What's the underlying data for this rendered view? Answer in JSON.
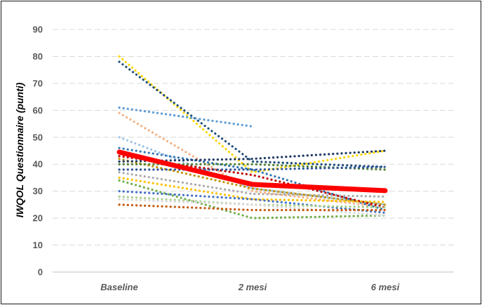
{
  "chart_data": {
    "type": "line",
    "title": "",
    "xlabel": "",
    "ylabel": "IWQOL Questionnaire (punti)",
    "categories": [
      "Baseline",
      "2 mesi",
      "6 mesi"
    ],
    "ylim": [
      0,
      90
    ],
    "yticks": [
      0,
      10,
      20,
      30,
      40,
      50,
      60,
      70,
      80,
      90
    ],
    "grid": true,
    "legend": "none",
    "mean_series": {
      "values": [
        44.5,
        32.5,
        30.2
      ],
      "color": "#ff0000"
    },
    "series": [
      {
        "values": [
          80,
          37,
          45
        ],
        "color": "#ffd700"
      },
      {
        "values": [
          78,
          41,
          39
        ],
        "color": "#1f4e79"
      },
      {
        "values": [
          61,
          54,
          null
        ],
        "color": "#5b9bd5"
      },
      {
        "values": [
          59,
          30,
          24
        ],
        "color": "#f4b183"
      },
      {
        "values": [
          50,
          31,
          25
        ],
        "color": "#9dc3e6"
      },
      {
        "values": [
          46,
          38,
          23
        ],
        "color": "#2e75b6"
      },
      {
        "values": [
          42,
          31,
          25
        ],
        "color": "#bf9000"
      },
      {
        "values": [
          43,
          36,
          24
        ],
        "color": "#c00000"
      },
      {
        "values": [
          41,
          42,
          45
        ],
        "color": "#203864"
      },
      {
        "values": [
          40,
          40,
          38
        ],
        "color": "#548235"
      },
      {
        "values": [
          38,
          38,
          39
        ],
        "color": "#2f5597"
      },
      {
        "values": [
          37,
          29,
          28
        ],
        "color": "#a9a9a9"
      },
      {
        "values": [
          35,
          27,
          26
        ],
        "color": "#ffc000"
      },
      {
        "values": [
          34,
          20,
          21
        ],
        "color": "#70ad47"
      },
      {
        "values": [
          30,
          27,
          22
        ],
        "color": "#4472c4"
      },
      {
        "values": [
          28,
          25,
          24
        ],
        "color": "#a9d18e"
      },
      {
        "values": [
          27,
          25,
          21
        ],
        "color": "#d9d9d9"
      },
      {
        "values": [
          25,
          23,
          23
        ],
        "color": "#c55a11"
      }
    ]
  }
}
